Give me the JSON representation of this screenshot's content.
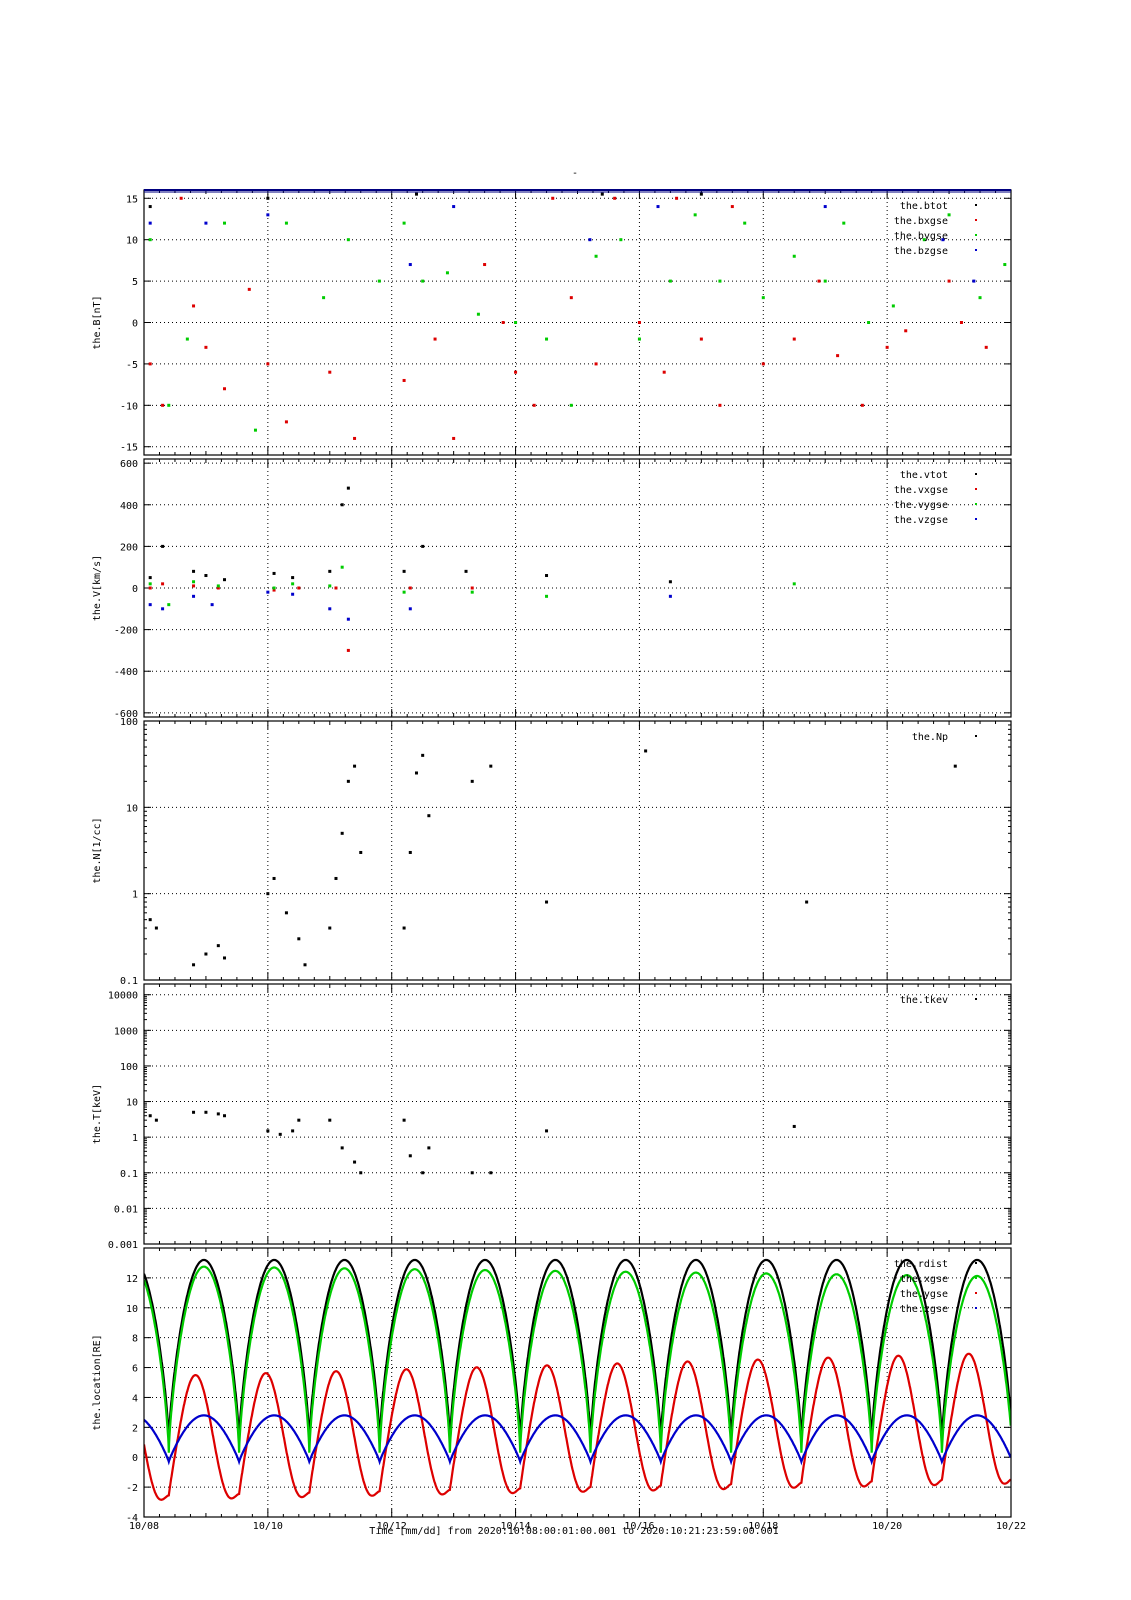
{
  "title": "-",
  "footer": {
    "xlabel": "Time [mm/dd]  from 2020:10:08:00:01:00.001  to  2020:10:21:23:59:00.001",
    "xticks": [
      "10/08",
      "10/10",
      "10/12",
      "10/14",
      "10/16",
      "10/18",
      "10/20",
      "10/22"
    ]
  },
  "colors": {
    "black": "#000000",
    "red": "#dd0000",
    "green": "#00cc00",
    "blue": "#0000cc",
    "axis": "#000080"
  },
  "chart_data": [
    {
      "type": "scatter",
      "ylabel": "the.B[nT]",
      "xlim": [
        0,
        14
      ],
      "ylim": [
        -16,
        16
      ],
      "yticks": [
        -15,
        -10,
        -5,
        0,
        5,
        10,
        15
      ],
      "ytick_labels": [
        "-15",
        "-10",
        "-5",
        "0",
        "5",
        "10",
        "15"
      ],
      "grid": true,
      "legend_position": "top-right",
      "series": [
        {
          "name": "the.btot",
          "color": "#000000",
          "points": [
            [
              0.1,
              14
            ],
            [
              2.0,
              15
            ],
            [
              4.4,
              15.5
            ],
            [
              7.4,
              15.5
            ],
            [
              9.0,
              15.5
            ]
          ]
        },
        {
          "name": "the.bxgse",
          "color": "#dd0000",
          "points": [
            [
              0.1,
              -5
            ],
            [
              0.3,
              -10
            ],
            [
              0.6,
              15
            ],
            [
              0.8,
              2
            ],
            [
              1.0,
              -3
            ],
            [
              1.3,
              -8
            ],
            [
              1.7,
              4
            ],
            [
              2.0,
              -5
            ],
            [
              2.3,
              -12
            ],
            [
              3.0,
              -6
            ],
            [
              3.4,
              -14
            ],
            [
              4.2,
              -7
            ],
            [
              4.7,
              -2
            ],
            [
              5.0,
              -14
            ],
            [
              5.5,
              7
            ],
            [
              5.8,
              0
            ],
            [
              6.0,
              -6
            ],
            [
              6.3,
              -10
            ],
            [
              6.6,
              15
            ],
            [
              6.9,
              3
            ],
            [
              7.3,
              -5
            ],
            [
              7.6,
              15
            ],
            [
              8.0,
              0
            ],
            [
              8.4,
              -6
            ],
            [
              8.6,
              15
            ],
            [
              9.0,
              -2
            ],
            [
              9.3,
              -10
            ],
            [
              9.5,
              14
            ],
            [
              10.0,
              -5
            ],
            [
              10.5,
              -2
            ],
            [
              10.9,
              5
            ],
            [
              11.2,
              -4
            ],
            [
              11.6,
              -10
            ],
            [
              12.0,
              -3
            ],
            [
              12.3,
              -1
            ],
            [
              13.0,
              5
            ],
            [
              13.2,
              0
            ],
            [
              13.6,
              -3
            ]
          ]
        },
        {
          "name": "the.bygse",
          "color": "#00cc00",
          "points": [
            [
              0.1,
              10
            ],
            [
              0.4,
              -10
            ],
            [
              0.7,
              -2
            ],
            [
              1.3,
              12
            ],
            [
              1.8,
              -13
            ],
            [
              2.3,
              12
            ],
            [
              2.9,
              3
            ],
            [
              3.3,
              10
            ],
            [
              3.8,
              5
            ],
            [
              4.2,
              12
            ],
            [
              4.5,
              5
            ],
            [
              4.9,
              6
            ],
            [
              5.4,
              1
            ],
            [
              6.0,
              0
            ],
            [
              6.5,
              -2
            ],
            [
              6.9,
              -10
            ],
            [
              7.3,
              8
            ],
            [
              7.7,
              10
            ],
            [
              8.0,
              -2
            ],
            [
              8.5,
              5
            ],
            [
              8.9,
              13
            ],
            [
              9.3,
              5
            ],
            [
              9.7,
              12
            ],
            [
              10.0,
              3
            ],
            [
              10.5,
              8
            ],
            [
              11.0,
              5
            ],
            [
              11.3,
              12
            ],
            [
              11.7,
              0
            ],
            [
              12.1,
              2
            ],
            [
              12.6,
              10
            ],
            [
              13.0,
              13
            ],
            [
              13.5,
              3
            ],
            [
              13.9,
              7
            ]
          ]
        },
        {
          "name": "the.bzgse",
          "color": "#0000cc",
          "points": [
            [
              0.1,
              12
            ],
            [
              1.0,
              12
            ],
            [
              2.0,
              13
            ],
            [
              4.3,
              7
            ],
            [
              5.0,
              14
            ],
            [
              7.2,
              10
            ],
            [
              8.3,
              14
            ],
            [
              11.0,
              14
            ],
            [
              12.9,
              10
            ],
            [
              13.4,
              5
            ]
          ]
        }
      ]
    },
    {
      "type": "scatter",
      "ylabel": "the.V[km/s]",
      "xlim": [
        0,
        14
      ],
      "ylim": [
        -620,
        620
      ],
      "yticks": [
        -600,
        -400,
        -200,
        0,
        200,
        400,
        600
      ],
      "ytick_labels": [
        "-600",
        "-400",
        "-200",
        "0",
        "200",
        "400",
        "600"
      ],
      "grid": true,
      "legend_position": "top-right",
      "series": [
        {
          "name": "the.vtot",
          "color": "#000000",
          "points": [
            [
              0.1,
              50
            ],
            [
              0.3,
              200
            ],
            [
              0.8,
              80
            ],
            [
              1.0,
              60
            ],
            [
              1.3,
              40
            ],
            [
              2.1,
              70
            ],
            [
              2.4,
              50
            ],
            [
              3.0,
              80
            ],
            [
              3.2,
              400
            ],
            [
              3.3,
              480
            ],
            [
              4.2,
              80
            ],
            [
              4.5,
              200
            ],
            [
              5.2,
              80
            ],
            [
              6.5,
              60
            ],
            [
              8.5,
              30
            ]
          ]
        },
        {
          "name": "the.vxgse",
          "color": "#dd0000",
          "points": [
            [
              0.1,
              0
            ],
            [
              0.3,
              20
            ],
            [
              0.8,
              10
            ],
            [
              1.2,
              0
            ],
            [
              2.1,
              -10
            ],
            [
              2.5,
              0
            ],
            [
              3.1,
              0
            ],
            [
              3.3,
              -300
            ],
            [
              4.3,
              0
            ],
            [
              5.3,
              0
            ]
          ]
        },
        {
          "name": "the.vygse",
          "color": "#00cc00",
          "points": [
            [
              0.1,
              20
            ],
            [
              0.4,
              -80
            ],
            [
              0.8,
              30
            ],
            [
              1.2,
              10
            ],
            [
              2.1,
              0
            ],
            [
              2.4,
              20
            ],
            [
              3.0,
              10
            ],
            [
              3.2,
              100
            ],
            [
              4.2,
              -20
            ],
            [
              5.3,
              -20
            ],
            [
              6.5,
              -40
            ],
            [
              10.5,
              20
            ]
          ]
        },
        {
          "name": "the.vzgse",
          "color": "#0000cc",
          "points": [
            [
              0.1,
              -80
            ],
            [
              0.3,
              -100
            ],
            [
              0.8,
              -40
            ],
            [
              1.1,
              -80
            ],
            [
              2.0,
              -20
            ],
            [
              2.4,
              -30
            ],
            [
              3.0,
              -100
            ],
            [
              3.3,
              -150
            ],
            [
              4.3,
              -100
            ],
            [
              8.5,
              -40
            ]
          ]
        }
      ]
    },
    {
      "type": "scatter",
      "ylabel": "the.N[1/cc]",
      "yscale": "log",
      "xlim": [
        0,
        14
      ],
      "ylim": [
        0.1,
        100
      ],
      "yticks": [
        0.1,
        1,
        10,
        100
      ],
      "ytick_labels": [
        "0.1",
        "1",
        "10",
        "100"
      ],
      "grid": true,
      "legend_position": "top-right",
      "series": [
        {
          "name": "the.Np",
          "color": "#000000",
          "points": [
            [
              0.1,
              0.5
            ],
            [
              0.2,
              0.4
            ],
            [
              0.8,
              0.15
            ],
            [
              1.0,
              0.2
            ],
            [
              1.2,
              0.25
            ],
            [
              1.3,
              0.18
            ],
            [
              2.0,
              1.0
            ],
            [
              2.1,
              1.5
            ],
            [
              2.3,
              0.6
            ],
            [
              2.5,
              0.3
            ],
            [
              2.6,
              0.15
            ],
            [
              3.0,
              0.4
            ],
            [
              3.1,
              1.5
            ],
            [
              3.2,
              5
            ],
            [
              3.3,
              20
            ],
            [
              3.4,
              30
            ],
            [
              3.5,
              3
            ],
            [
              4.2,
              0.4
            ],
            [
              4.3,
              3
            ],
            [
              4.4,
              25
            ],
            [
              4.5,
              40
            ],
            [
              4.6,
              8
            ],
            [
              5.3,
              20
            ],
            [
              5.6,
              30
            ],
            [
              6.5,
              0.8
            ],
            [
              8.1,
              45
            ],
            [
              10.7,
              0.8
            ],
            [
              13.1,
              30
            ]
          ]
        }
      ]
    },
    {
      "type": "scatter",
      "ylabel": "the.T[keV]",
      "yscale": "log",
      "xlim": [
        0,
        14
      ],
      "ylim": [
        0.001,
        20000
      ],
      "yticks": [
        0.001,
        0.01,
        0.1,
        1,
        10,
        100,
        1000,
        10000
      ],
      "ytick_labels": [
        "0.001",
        "0.01",
        "0.1",
        "1",
        "10",
        "100",
        "1000",
        "10000"
      ],
      "grid": true,
      "legend_position": "top-right",
      "series": [
        {
          "name": "the.tkev",
          "color": "#000000",
          "points": [
            [
              0.1,
              4
            ],
            [
              0.2,
              3
            ],
            [
              0.8,
              5
            ],
            [
              1.0,
              5
            ],
            [
              1.2,
              4.5
            ],
            [
              1.3,
              4
            ],
            [
              2.0,
              1.5
            ],
            [
              2.2,
              1.2
            ],
            [
              2.4,
              1.5
            ],
            [
              2.5,
              3
            ],
            [
              3.0,
              3
            ],
            [
              3.2,
              0.5
            ],
            [
              3.4,
              0.2
            ],
            [
              3.5,
              0.1
            ],
            [
              4.2,
              3
            ],
            [
              4.3,
              0.3
            ],
            [
              4.5,
              0.1
            ],
            [
              4.6,
              0.5
            ],
            [
              5.3,
              0.1
            ],
            [
              5.6,
              0.1
            ],
            [
              6.5,
              1.5
            ],
            [
              10.5,
              2
            ]
          ]
        }
      ]
    },
    {
      "type": "line",
      "ylabel": "the.location[RE]",
      "xlim": [
        0,
        14
      ],
      "ylim": [
        -4,
        14
      ],
      "yticks": [
        -4,
        -2,
        0,
        2,
        4,
        6,
        8,
        10,
        12
      ],
      "ytick_labels": [
        "-4",
        "-2",
        "0",
        "2",
        "4",
        "6",
        "8",
        "10",
        "12"
      ],
      "grid": true,
      "legend_position": "top-right",
      "orbit_period_days": 1.135,
      "first_perigee_day": 0.4,
      "series": [
        {
          "name": "the.rdist",
          "color": "#000000",
          "perigee": 1.0,
          "apogee": 13.2
        },
        {
          "name": "the.xgse",
          "color": "#00cc00",
          "perigee": 0.3,
          "apogee_start": 12.8,
          "apogee_end": 12.1
        },
        {
          "name": "the.ygse",
          "color": "#dd0000",
          "min_start": -2.8,
          "min_end": -1.7,
          "max_start": 5.4,
          "max_end": 7.0
        },
        {
          "name": "the.zgse",
          "color": "#0000cc",
          "perigee": -0.3,
          "apogee": 2.8
        }
      ]
    }
  ]
}
